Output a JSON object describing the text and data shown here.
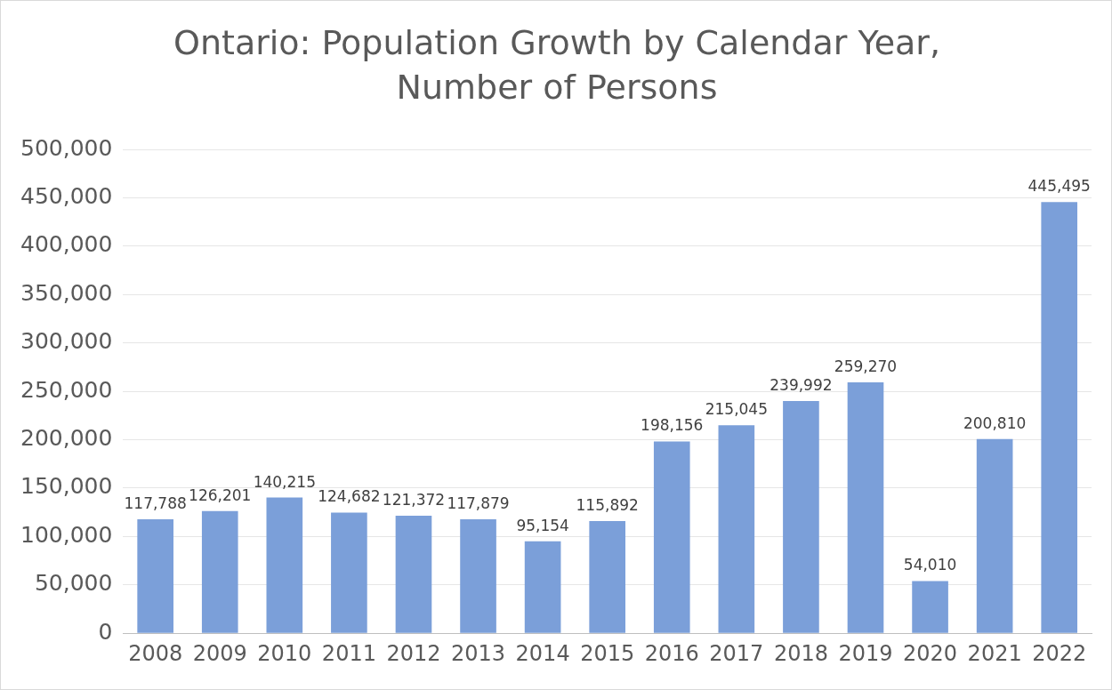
{
  "chart_data": {
    "type": "bar",
    "title": "Ontario: Population Growth by Calendar Year, Number of Persons",
    "categories": [
      "2008",
      "2009",
      "2010",
      "2011",
      "2012",
      "2013",
      "2014",
      "2015",
      "2016",
      "2017",
      "2018",
      "2019",
      "2020",
      "2021",
      "2022"
    ],
    "values": [
      117788,
      126201,
      140215,
      124682,
      121372,
      117879,
      95154,
      115892,
      198156,
      215045,
      239992,
      259270,
      54010,
      200810,
      445495
    ],
    "color": "#7b9fd9",
    "ylim": [
      0,
      500000
    ],
    "yticks": [
      {
        "value": 0,
        "label": "0"
      },
      {
        "value": 50000,
        "label": "50,000"
      },
      {
        "value": 100000,
        "label": "100,000"
      },
      {
        "value": 150000,
        "label": "150,000"
      },
      {
        "value": 200000,
        "label": "200,000"
      },
      {
        "value": 250000,
        "label": "250,000"
      },
      {
        "value": 300000,
        "label": "300,000"
      },
      {
        "value": 350000,
        "label": "350,000"
      },
      {
        "value": 400000,
        "label": "400,000"
      },
      {
        "value": 450000,
        "label": "450,000"
      },
      {
        "value": 500000,
        "label": "500,000"
      }
    ],
    "grid": "y",
    "legend": false,
    "value_labels": [
      "117,788",
      "126,201",
      "140,215",
      "124,682",
      "121,372",
      "117,879",
      "95,154",
      "115,892",
      "198,156",
      "215,045",
      "239,992",
      "259,270",
      "54,010",
      "200,810",
      "445,495"
    ]
  }
}
